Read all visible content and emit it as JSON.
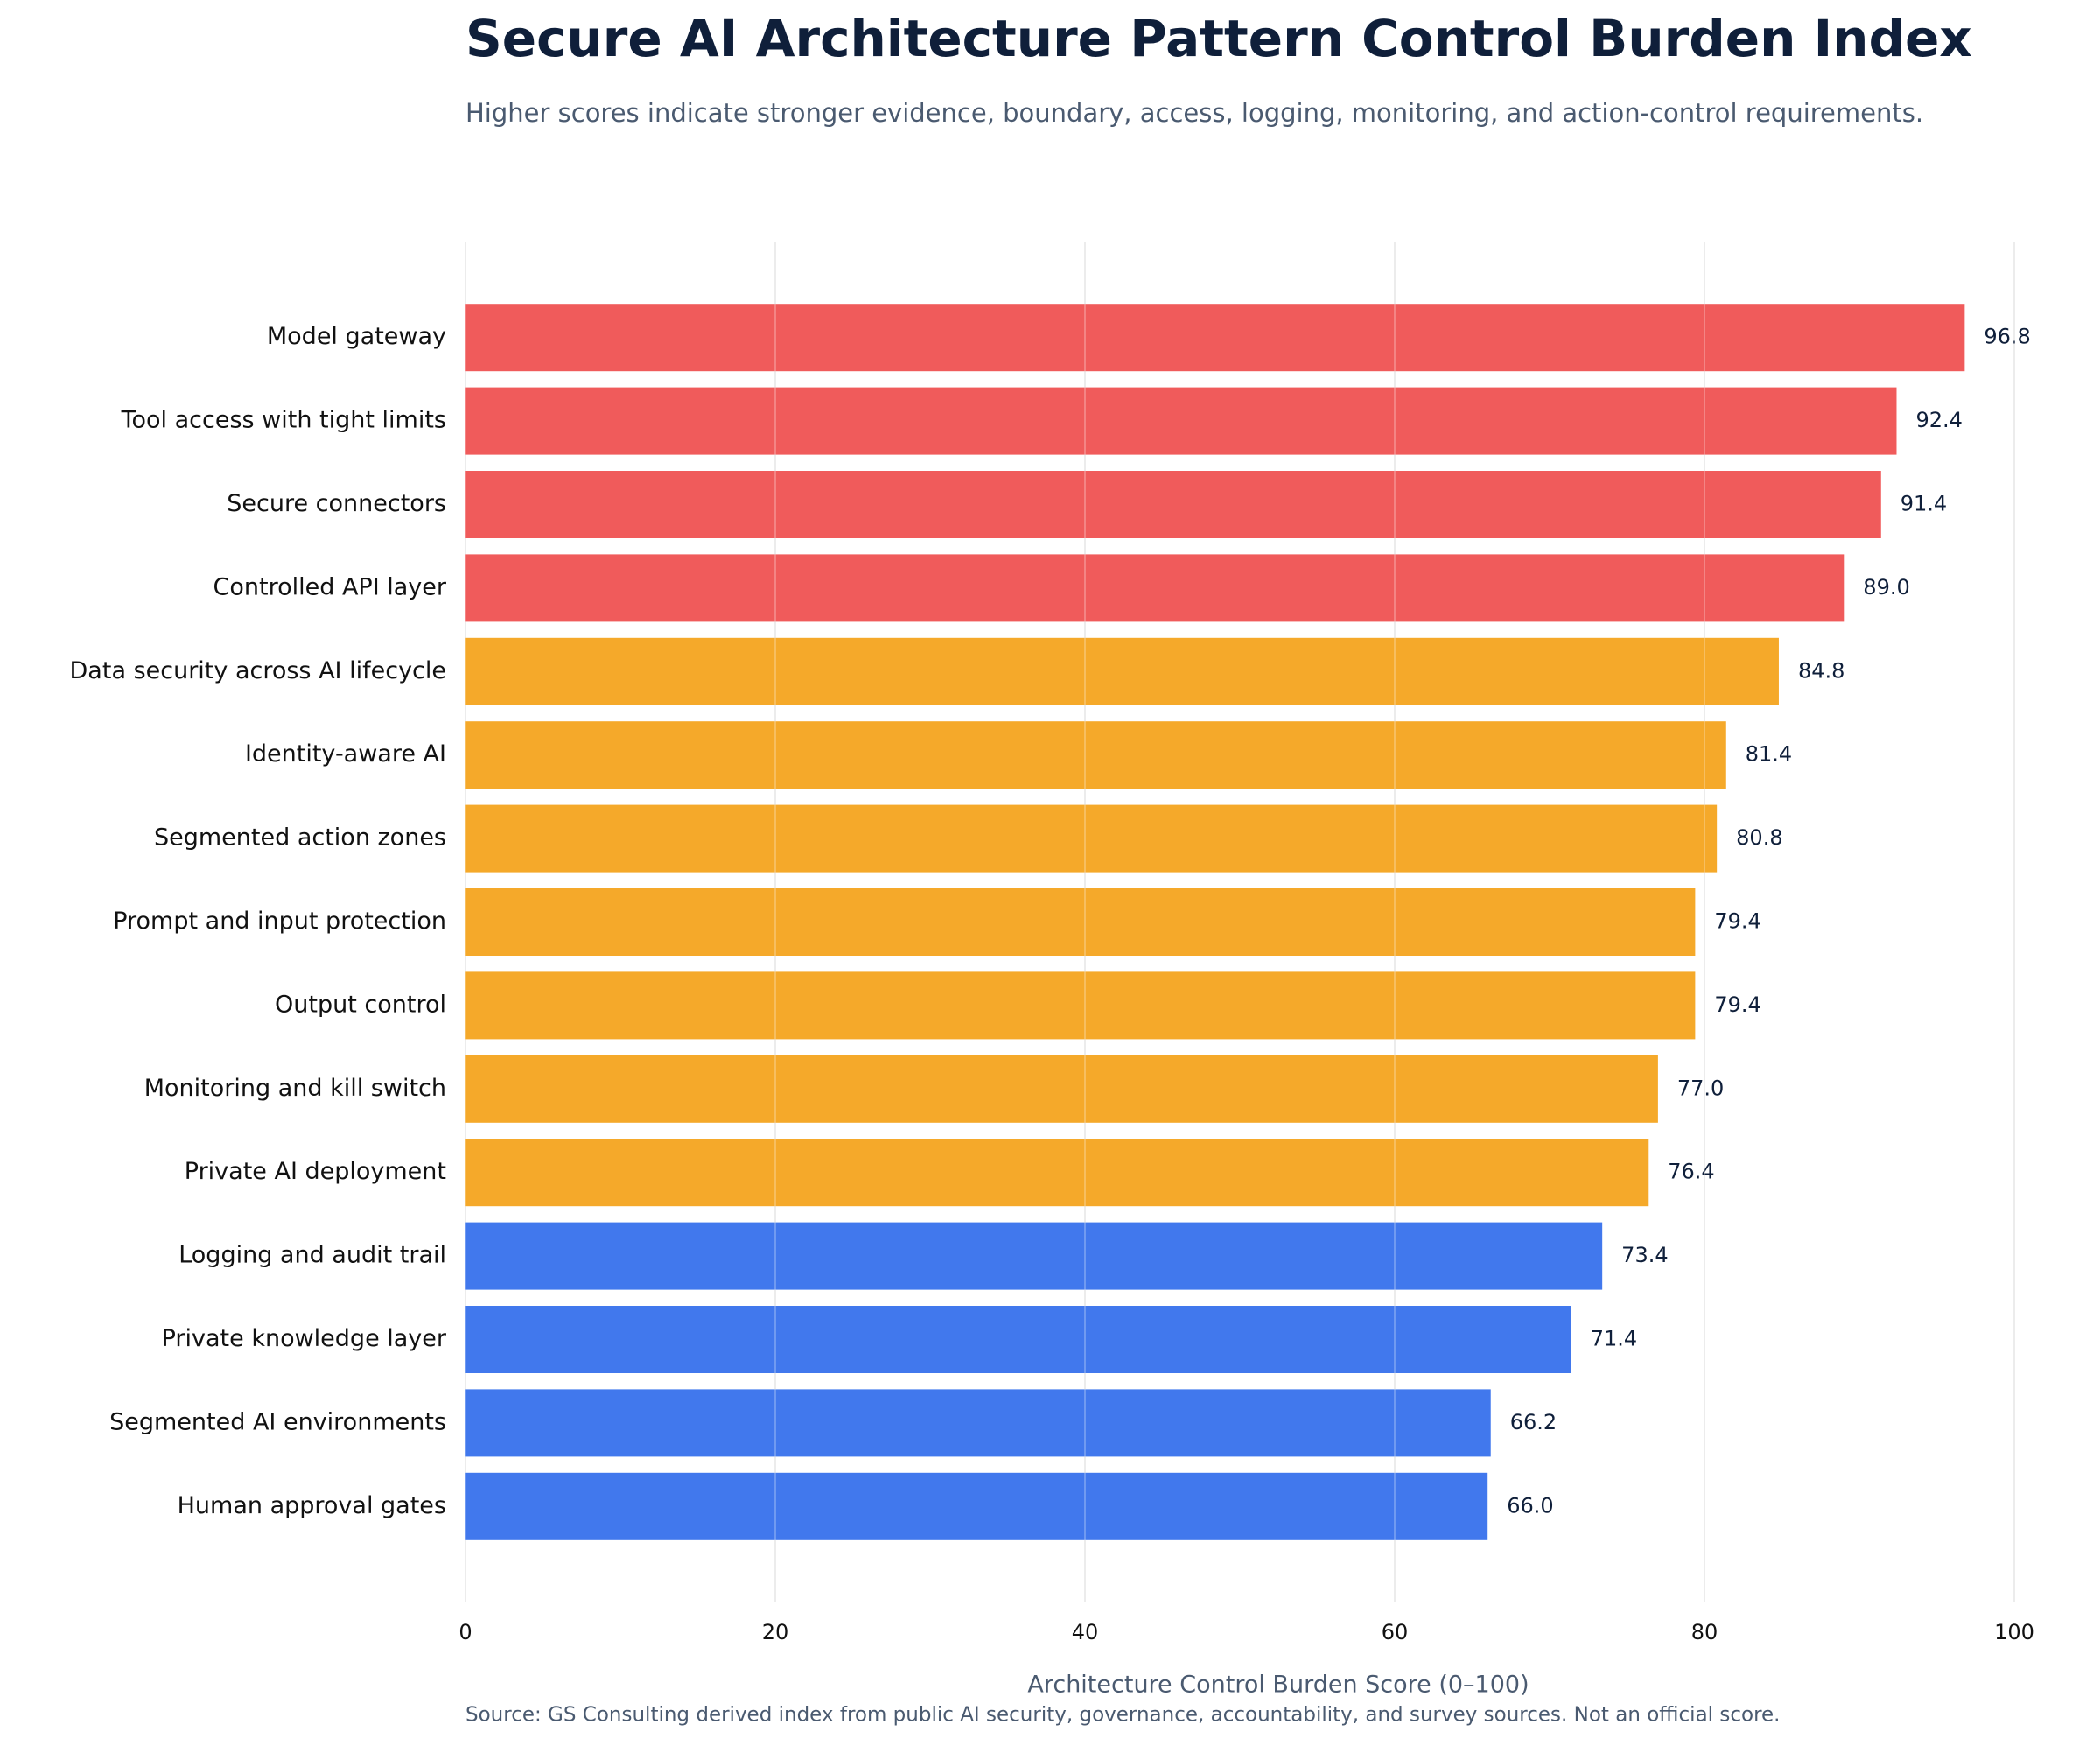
{
  "chart_data": {
    "type": "barh",
    "title": "Secure AI Architecture Pattern Control Burden Index",
    "subtitle": "Higher scores indicate stronger evidence, boundary, access, logging, monitoring, and action-control requirements.",
    "xlabel": "Architecture Control Burden Score (0–100)",
    "source": "Source: GS Consulting derived index from public AI security, governance, accountability, and survey sources. Not an official score.",
    "categories": [
      "Model gateway",
      "Tool access with tight limits",
      "Secure connectors",
      "Controlled API layer",
      "Data security across AI lifecycle",
      "Identity-aware AI",
      "Segmented action zones",
      "Prompt and input protection",
      "Output control",
      "Monitoring and kill switch",
      "Private AI deployment",
      "Logging and audit trail",
      "Private knowledge layer",
      "Segmented AI environments",
      "Human approval gates"
    ],
    "values": [
      96.8,
      92.4,
      91.4,
      89.0,
      84.8,
      81.4,
      80.8,
      79.4,
      79.4,
      77.0,
      76.4,
      73.4,
      71.4,
      66.2,
      66.0
    ],
    "value_labels": [
      "96.8",
      "92.4",
      "91.4",
      "89.0",
      "84.8",
      "81.4",
      "80.8",
      "79.4",
      "79.4",
      "77.0",
      "76.4",
      "73.4",
      "71.4",
      "66.2",
      "66.0"
    ],
    "colors": [
      "#ef5656",
      "#ef5656",
      "#ef5656",
      "#ef5656",
      "#f5a623",
      "#f5a623",
      "#f5a623",
      "#f5a623",
      "#f5a623",
      "#f5a623",
      "#f5a623",
      "#3b74ec",
      "#3b74ec",
      "#3b74ec",
      "#3b74ec"
    ],
    "xlim": [
      0,
      100
    ],
    "xticks": [
      0,
      20,
      40,
      60,
      80,
      100
    ],
    "grid": true
  }
}
